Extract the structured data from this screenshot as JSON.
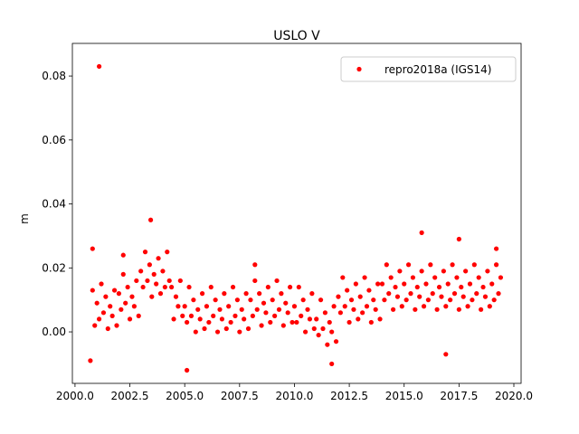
{
  "chart_data": {
    "type": "scatter",
    "title": "USLO V",
    "y_label": "m",
    "xlim": [
      1999.88,
      2020.33
    ],
    "ylim": [
      -0.0161,
      0.0902
    ],
    "xticks": [
      {
        "value": 2000,
        "label": "2000.0"
      },
      2002.5,
      {
        "value": 2005,
        "label": "2005.0"
      },
      2007.5,
      {
        "value": 2010,
        "label": "2010.0"
      },
      2012.5,
      {
        "value": 2015,
        "label": "2015.0"
      },
      2017.5,
      {
        "value": 2020,
        "label": "2020.0"
      }
    ],
    "yticks": [
      {
        "value": 0,
        "label": "0.00"
      },
      0.02,
      0.04,
      0.06,
      0.08
    ],
    "legend": "upper right",
    "series": [
      {
        "name": "repro2018a (IGS14)",
        "color": "#ff0000",
        "x": [
          2000.8,
          2000.9,
          2001.0,
          2001.1,
          2001.2,
          2001.3,
          2001.4,
          2001.5,
          2001.6,
          2001.7,
          2001.8,
          2001.9,
          2002.0,
          2002.1,
          2002.2,
          2002.3,
          2002.4,
          2002.5,
          2002.6,
          2002.7,
          2002.8,
          2002.9,
          2003.0,
          2003.1,
          2003.2,
          2003.3,
          2003.4,
          2003.5,
          2003.6,
          2003.7,
          2003.8,
          2003.9,
          2004.0,
          2004.1,
          2004.2,
          2004.3,
          2004.4,
          2004.5,
          2004.6,
          2004.7,
          2004.8,
          2004.9,
          2005.0,
          2005.1,
          2005.2,
          2005.3,
          2005.4,
          2005.5,
          2005.6,
          2005.7,
          2005.8,
          2005.9,
          2006.0,
          2006.1,
          2006.2,
          2006.3,
          2006.4,
          2006.5,
          2006.6,
          2006.7,
          2006.8,
          2006.9,
          2007.0,
          2007.1,
          2007.2,
          2007.3,
          2007.4,
          2007.5,
          2007.6,
          2007.7,
          2007.8,
          2007.9,
          2008.0,
          2008.1,
          2008.2,
          2008.3,
          2008.4,
          2008.5,
          2008.6,
          2008.7,
          2008.8,
          2008.9,
          2009.0,
          2009.1,
          2009.2,
          2009.3,
          2009.4,
          2009.5,
          2009.6,
          2009.7,
          2009.8,
          2009.9,
          2010.0,
          2010.1,
          2010.2,
          2010.3,
          2010.4,
          2010.5,
          2010.6,
          2010.7,
          2010.8,
          2010.9,
          2011.0,
          2011.1,
          2011.2,
          2011.3,
          2011.4,
          2011.5,
          2011.6,
          2011.7,
          2011.8,
          2011.9,
          2012.0,
          2012.1,
          2012.2,
          2012.3,
          2012.4,
          2012.5,
          2012.6,
          2012.7,
          2012.8,
          2012.9,
          2013.0,
          2013.1,
          2013.2,
          2013.3,
          2013.4,
          2013.5,
          2013.6,
          2013.7,
          2013.8,
          2013.9,
          2014.0,
          2014.1,
          2014.2,
          2014.3,
          2014.4,
          2014.5,
          2014.6,
          2014.7,
          2014.8,
          2014.9,
          2015.0,
          2015.1,
          2015.2,
          2015.3,
          2015.4,
          2015.5,
          2015.6,
          2015.7,
          2015.8,
          2015.9,
          2016.0,
          2016.1,
          2016.2,
          2016.3,
          2016.4,
          2016.5,
          2016.6,
          2016.7,
          2016.8,
          2016.9,
          2017.0,
          2017.1,
          2017.2,
          2017.3,
          2017.4,
          2017.5,
          2017.6,
          2017.7,
          2017.8,
          2017.9,
          2018.0,
          2018.1,
          2018.2,
          2018.3,
          2018.4,
          2018.5,
          2018.6,
          2018.7,
          2018.8,
          2018.9,
          2019.0,
          2019.1,
          2019.2,
          2019.3,
          2019.4,
          2001.1,
          2005.1,
          2000.7,
          2003.45,
          2015.8,
          2016.9,
          2000.8,
          2011.7,
          2017.5,
          2008.2,
          2019.2,
          2002.2
        ],
        "values": [
          0.013,
          0.002,
          0.009,
          0.004,
          0.015,
          0.006,
          0.011,
          0.001,
          0.008,
          0.005,
          0.013,
          0.002,
          0.012,
          0.007,
          0.018,
          0.009,
          0.014,
          0.004,
          0.011,
          0.008,
          0.016,
          0.005,
          0.019,
          0.014,
          0.025,
          0.016,
          0.021,
          0.011,
          0.018,
          0.015,
          0.023,
          0.012,
          0.019,
          0.014,
          0.025,
          0.016,
          0.014,
          0.004,
          0.011,
          0.008,
          0.016,
          0.005,
          0.008,
          0.003,
          0.014,
          0.005,
          0.01,
          0.0,
          0.007,
          0.004,
          0.012,
          0.001,
          0.008,
          0.003,
          0.014,
          0.005,
          0.01,
          0.0,
          0.007,
          0.004,
          0.012,
          0.001,
          0.008,
          0.003,
          0.014,
          0.005,
          0.01,
          0.0,
          0.007,
          0.004,
          0.012,
          0.001,
          0.01,
          0.005,
          0.016,
          0.007,
          0.012,
          0.002,
          0.009,
          0.006,
          0.014,
          0.003,
          0.01,
          0.005,
          0.016,
          0.007,
          0.012,
          0.002,
          0.009,
          0.006,
          0.014,
          0.003,
          0.008,
          0.003,
          0.014,
          0.005,
          0.01,
          0.0,
          0.007,
          0.004,
          0.012,
          0.001,
          0.004,
          -0.001,
          0.01,
          0.001,
          0.006,
          -0.004,
          0.003,
          0.0,
          0.008,
          -0.003,
          0.011,
          0.006,
          0.017,
          0.008,
          0.013,
          0.003,
          0.01,
          0.007,
          0.015,
          0.004,
          0.011,
          0.006,
          0.017,
          0.008,
          0.013,
          0.003,
          0.01,
          0.007,
          0.015,
          0.004,
          0.015,
          0.01,
          0.021,
          0.012,
          0.017,
          0.007,
          0.014,
          0.011,
          0.019,
          0.008,
          0.015,
          0.01,
          0.021,
          0.012,
          0.017,
          0.007,
          0.014,
          0.011,
          0.019,
          0.008,
          0.015,
          0.01,
          0.021,
          0.012,
          0.017,
          0.007,
          0.014,
          0.011,
          0.019,
          0.008,
          0.015,
          0.01,
          0.021,
          0.012,
          0.017,
          0.007,
          0.014,
          0.011,
          0.019,
          0.008,
          0.015,
          0.01,
          0.021,
          0.012,
          0.017,
          0.007,
          0.014,
          0.011,
          0.019,
          0.008,
          0.015,
          0.01,
          0.021,
          0.012,
          0.017,
          0.083,
          -0.012,
          -0.009,
          0.035,
          0.031,
          -0.007,
          0.026,
          -0.01,
          0.029,
          0.021,
          0.026,
          0.024
        ]
      }
    ]
  }
}
